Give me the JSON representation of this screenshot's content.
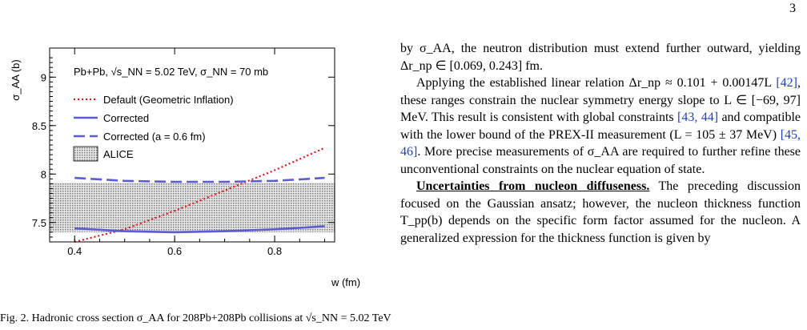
{
  "page": {
    "number": "3"
  },
  "figure": {
    "chart_data": {
      "type": "line",
      "annotation": "Pb+Pb, √s_NN = 5.02 TeV, σ_NN = 70 mb",
      "xlabel": "w (fm)",
      "ylabel": "σ_AA (b)",
      "xlim": [
        0.35,
        0.92
      ],
      "ylim": [
        7.3,
        9.3
      ],
      "xticks": [
        "0.4",
        "0.6",
        "0.8"
      ],
      "yticks": [
        "7.5",
        "8",
        "8.5",
        "9"
      ],
      "legend_position": "top-left",
      "series": [
        {
          "name": "Default (Geometric Inflation)",
          "style": "dotted",
          "color": "#e8161b",
          "x": [
            0.4,
            0.5,
            0.6,
            0.7,
            0.8,
            0.9
          ],
          "values": [
            7.3,
            7.43,
            7.62,
            7.83,
            8.04,
            8.27
          ]
        },
        {
          "name": "Corrected",
          "style": "solid",
          "color": "#5b5bd6",
          "x": [
            0.4,
            0.5,
            0.6,
            0.7,
            0.8,
            0.9
          ],
          "values": [
            7.44,
            7.41,
            7.4,
            7.41,
            7.43,
            7.46
          ]
        },
        {
          "name": "Corrected (a = 0.6 fm)",
          "style": "dashed",
          "color": "#5b5bd6",
          "x": [
            0.4,
            0.5,
            0.6,
            0.7,
            0.8,
            0.9
          ],
          "values": [
            7.96,
            7.93,
            7.92,
            7.92,
            7.93,
            7.96
          ]
        }
      ],
      "band": {
        "name": "ALICE",
        "low": 7.4,
        "high": 7.91
      }
    }
  },
  "caption": "Fig. 2. Hadronic cross section σ_AA for 208Pb+208Pb collisions at √s_NN = 5.02 TeV",
  "text": {
    "p1": "by σ_AA, the neutron distribution must extend further outward, yielding Δr_np ∈ [0.069, 0.243] fm.",
    "p2a": "Applying the established linear relation Δr_np ≈ 0.101 + 0.00147L",
    "c42": "[42]",
    "p2b": ", these ranges constrain the nuclear symmetry energy slope to L ∈ [−69, 97] MeV. This result is consistent with global constraints",
    "c4344": "[43, 44]",
    "p2c": "and compatible with the lower bound of the PREX-II measurement (L = 105 ± 37 MeV)",
    "c45": "[45,",
    "c46": "46]",
    "p2d": ". More precise measurements of σ_AA are required to further refine these unconventional constraints on the nuclear equation of state.",
    "heading": "Uncertainties from nucleon diffuseness.",
    "p3": "The preceding discussion focused on the Gaussian ansatz; however, the nucleon thickness function T_pp(b) depends on the specific form factor assumed for the nucleon. A generalized expression for the thickness function is given by"
  }
}
